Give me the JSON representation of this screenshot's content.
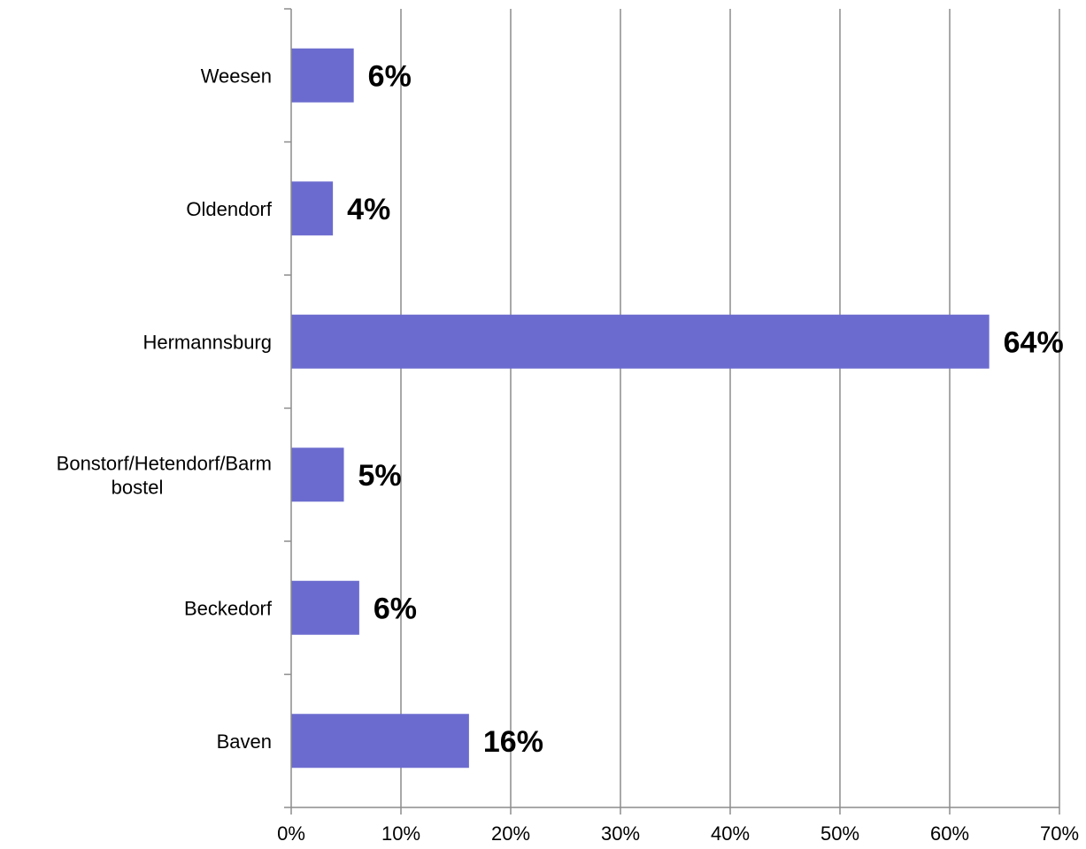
{
  "chart_data": {
    "type": "bar",
    "orientation": "horizontal",
    "categories": [
      "Weesen",
      "Oldendorf",
      "Hermannsburg",
      "Bonstorf/Hetendorf/Barmbostel",
      "Beckedorf",
      "Baven"
    ],
    "category_label_lines": [
      [
        "Weesen"
      ],
      [
        "Oldendorf"
      ],
      [
        "Hermannsburg"
      ],
      [
        "Bonstorf/Hetendorf/Barm",
        "bostel"
      ],
      [
        "Beckedorf"
      ],
      [
        "Baven"
      ]
    ],
    "values": [
      5.7,
      3.8,
      63.6,
      4.8,
      6.2,
      16.2
    ],
    "data_labels": [
      "6%",
      "4%",
      "64%",
      "5%",
      "6%",
      "16%"
    ],
    "xlim": [
      0,
      70
    ],
    "xticks": [
      0,
      10,
      20,
      30,
      40,
      50,
      60,
      70
    ],
    "xtick_labels": [
      "0%",
      "10%",
      "20%",
      "30%",
      "40%",
      "50%",
      "60%",
      "70%"
    ],
    "title": "",
    "xlabel": "",
    "ylabel": "",
    "grid": "vertical",
    "legend": "none",
    "colors": {
      "bar": "#6b6bcf",
      "grid": "#8c8c8c",
      "axis": "#8c8c8c",
      "text": "#000000"
    }
  }
}
